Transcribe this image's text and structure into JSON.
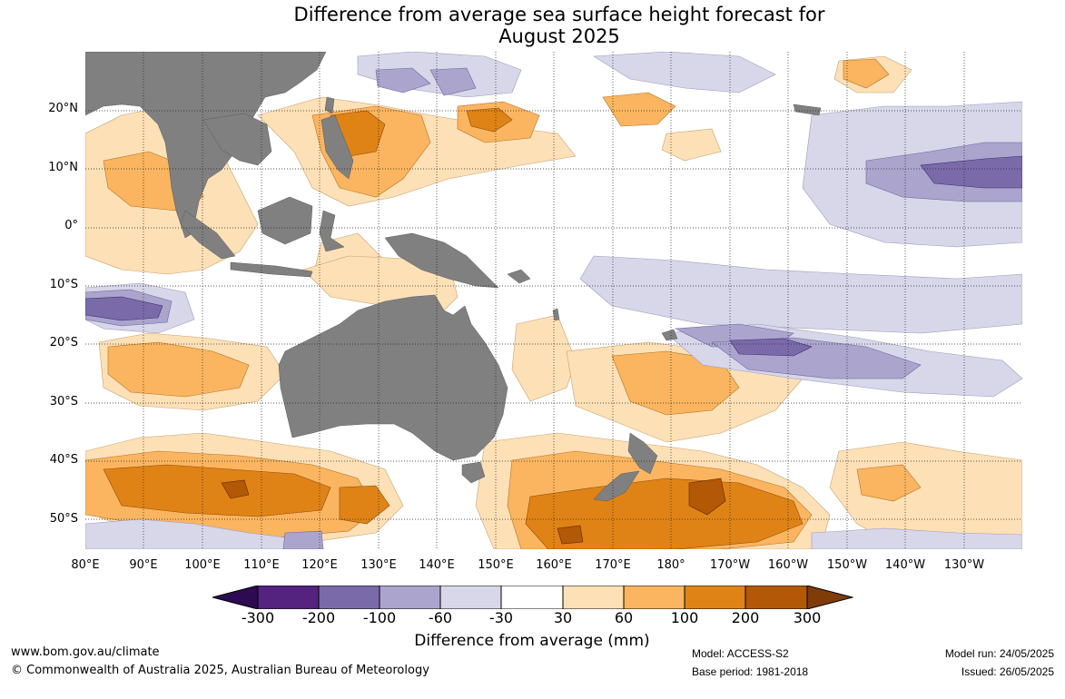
{
  "title": {
    "line1": "Difference from average sea surface height forecast for",
    "line2": "August 2025"
  },
  "map": {
    "land_color": "#808080",
    "lat_labels": [
      "20°N",
      "10°N",
      "0°",
      "10°S",
      "20°S",
      "30°S",
      "40°S",
      "50°S"
    ],
    "lon_labels": [
      "80°E",
      "90°E",
      "100°E",
      "110°E",
      "120°E",
      "130°E",
      "140°E",
      "150°E",
      "160°E",
      "170°E",
      "180°",
      "170°W",
      "160°W",
      "150°W",
      "140°W",
      "130°W"
    ]
  },
  "colorbar": {
    "ticks": [
      "-300",
      "-200",
      "-100",
      "-60",
      "-30",
      "30",
      "60",
      "100",
      "200",
      "300"
    ],
    "colors": [
      "#2e0a52",
      "#54237f",
      "#7b6aaa",
      "#aba5cd",
      "#d7d7e9",
      "#ffffff",
      "#fee0b6",
      "#fbb560",
      "#e08316",
      "#b35806",
      "#7f3b08"
    ],
    "label": "Difference from average (mm)"
  },
  "footer": {
    "url": "www.bom.gov.au/climate",
    "copyright": "© Commonwealth of Australia 2025, Australian Bureau of Meteorology",
    "model": "Model: ACCESS-S2",
    "base_period": "Base period: 1981-2018",
    "model_run": "Model run: 24/05/2025",
    "issued": "Issued: 26/05/2025"
  }
}
